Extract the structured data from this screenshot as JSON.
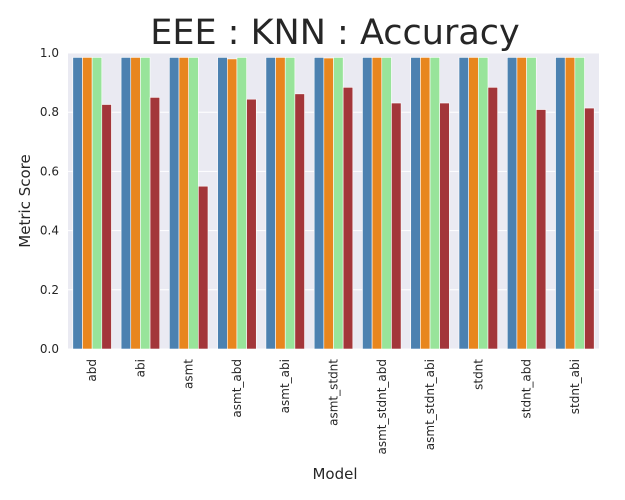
{
  "chart_data": {
    "type": "bar",
    "title": "EEE : KNN : Accuracy",
    "xlabel": "Model",
    "ylabel": "Metric Score",
    "ylim": [
      0,
      1.0
    ],
    "yticks": [
      "0.0",
      "0.2",
      "0.4",
      "0.6",
      "0.8",
      "1.0"
    ],
    "grid": true,
    "legend": "none",
    "background_color": "#eaeaf2",
    "grid_color": "#ffffff",
    "categories": [
      "abd",
      "abi",
      "asmt",
      "asmt_abd",
      "asmt_abi",
      "asmt_stdnt",
      "asmt_stdnt_abd",
      "asmt_stdnt_abi",
      "stdnt",
      "stdnt_abd",
      "stdnt_abi"
    ],
    "series": [
      {
        "color": "#4c81b0",
        "values": [
          0.985,
          0.985,
          0.985,
          0.985,
          0.985,
          0.985,
          0.985,
          0.985,
          0.985,
          0.985,
          0.985
        ]
      },
      {
        "color": "#e8861e",
        "values": [
          0.985,
          0.985,
          0.985,
          0.98,
          0.985,
          0.983,
          0.985,
          0.985,
          0.985,
          0.985,
          0.985
        ]
      },
      {
        "color": "#98e49a",
        "values": [
          0.985,
          0.985,
          0.985,
          0.985,
          0.985,
          0.985,
          0.985,
          0.985,
          0.985,
          0.985,
          0.985
        ]
      },
      {
        "color": "#a3363a",
        "values": [
          0.826,
          0.85,
          0.55,
          0.844,
          0.862,
          0.884,
          0.831,
          0.831,
          0.884,
          0.809,
          0.814
        ]
      }
    ]
  }
}
